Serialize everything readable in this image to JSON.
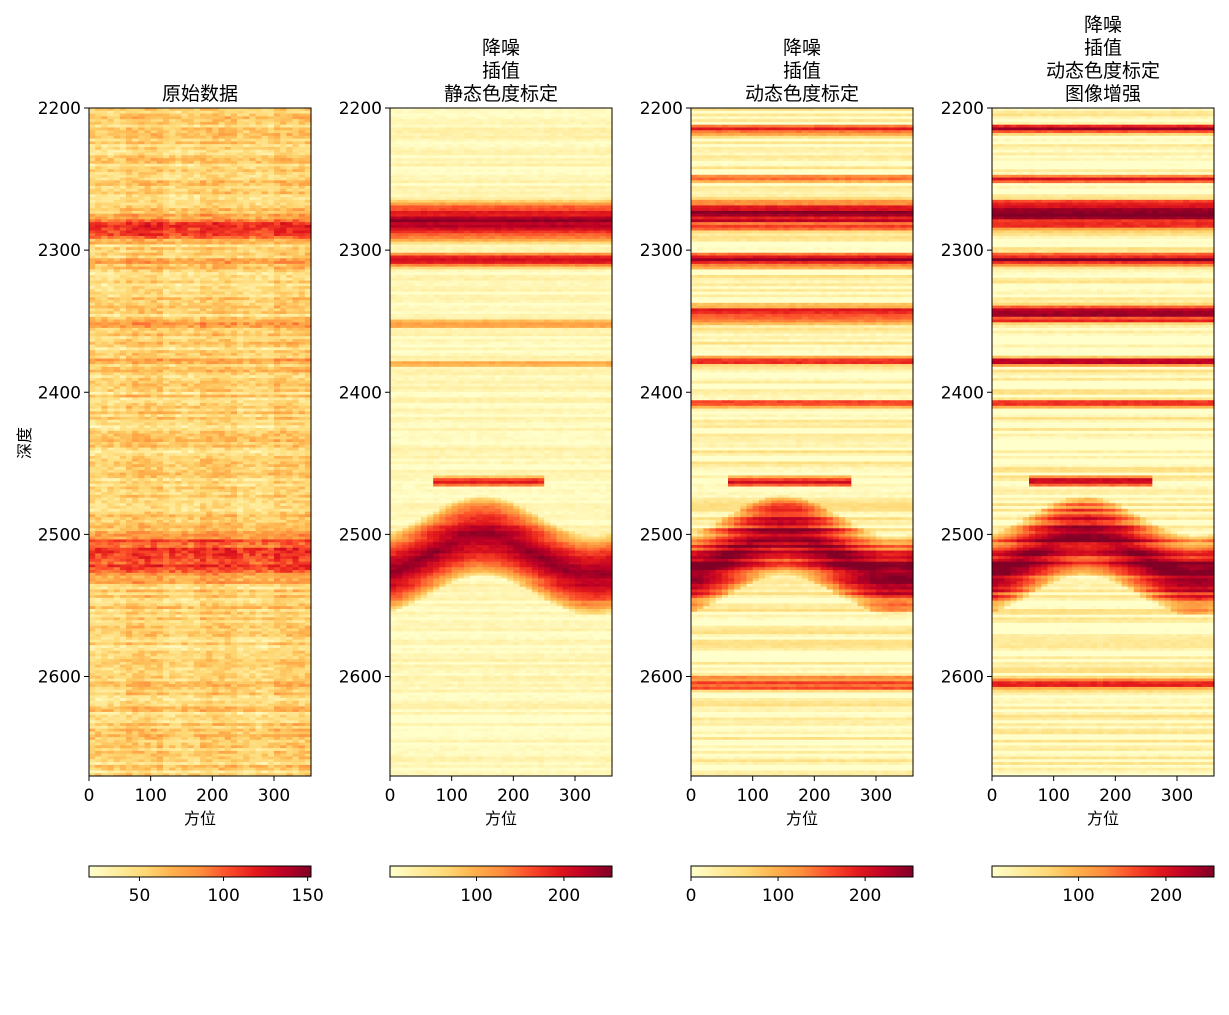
{
  "figure": {
    "ylabel": "深度",
    "xlabel": "方位",
    "colormap": [
      "#ffffcc",
      "#ffeda0",
      "#fed976",
      "#feb24c",
      "#fd8d3c",
      "#fc4e2a",
      "#e31a1c",
      "#bd0026",
      "#800026"
    ]
  },
  "chart_data": [
    {
      "type": "heatmap",
      "title": "原始数据",
      "title_lines": [
        "原始数据"
      ],
      "xlabel": "方位",
      "ylabel": "深度",
      "xlim": [
        0,
        360
      ],
      "ylim": [
        2670,
        2200
      ],
      "xticks": [
        0,
        100,
        200,
        300
      ],
      "yticks": [
        2200,
        2300,
        2400,
        2500,
        2600
      ],
      "colorbar": {
        "range": [
          20,
          152
        ],
        "ticks": [
          50,
          100,
          150
        ]
      },
      "bands": [
        {
          "center": 2285,
          "width": 28,
          "level": 0.75
        },
        {
          "center": 2308,
          "width": 8,
          "level": 0.55
        },
        {
          "center": 2352,
          "width": 14,
          "level": 0.5
        },
        {
          "center": 2378,
          "width": 6,
          "level": 0.45
        },
        {
          "center": 2515,
          "width": 50,
          "level": 0.8
        }
      ],
      "raw": true
    },
    {
      "type": "heatmap",
      "title": "降噪\n插值\n静态色度标定",
      "title_lines": [
        "降噪",
        "插值",
        "静态色度标定"
      ],
      "xlabel": "方位",
      "ylabel": "",
      "xlim": [
        0,
        360
      ],
      "ylim": [
        2670,
        2200
      ],
      "xticks": [
        0,
        100,
        200,
        300
      ],
      "yticks": [
        2200,
        2300,
        2400,
        2500,
        2600
      ],
      "colorbar": {
        "range": [
          1,
          255
        ],
        "ticks": [
          100,
          200
        ]
      },
      "bands": [
        {
          "center": 2280,
          "width": 30,
          "level": 0.95
        },
        {
          "center": 2307,
          "width": 10,
          "level": 0.85
        },
        {
          "center": 2352,
          "width": 6,
          "level": 0.5
        },
        {
          "center": 2380,
          "width": 4,
          "level": 0.5
        },
        {
          "center": 2463,
          "width": 6,
          "level": 0.85,
          "azimuth": [
            70,
            250
          ]
        },
        {
          "center": 2515,
          "width": 55,
          "level": 0.95,
          "arch": true
        }
      ],
      "raw": false
    },
    {
      "type": "heatmap",
      "title": "降噪\n插值\n动态色度标定",
      "title_lines": [
        "降噪",
        "插值",
        "动态色度标定"
      ],
      "xlabel": "方位",
      "ylabel": "",
      "xlim": [
        0,
        360
      ],
      "ylim": [
        2670,
        2200
      ],
      "xticks": [
        0,
        100,
        200,
        300
      ],
      "yticks": [
        2200,
        2300,
        2400,
        2500,
        2600
      ],
      "colorbar": {
        "range": [
          0,
          255
        ],
        "ticks": [
          0,
          100,
          200
        ]
      },
      "bands": [
        {
          "center": 2215,
          "width": 6,
          "level": 0.85
        },
        {
          "center": 2250,
          "width": 5,
          "level": 0.6
        },
        {
          "center": 2275,
          "width": 24,
          "level": 0.95
        },
        {
          "center": 2307,
          "width": 10,
          "level": 0.9
        },
        {
          "center": 2345,
          "width": 14,
          "level": 0.8
        },
        {
          "center": 2378,
          "width": 5,
          "level": 0.8
        },
        {
          "center": 2408,
          "width": 5,
          "level": 0.7
        },
        {
          "center": 2463,
          "width": 6,
          "level": 0.9,
          "azimuth": [
            60,
            260
          ]
        },
        {
          "center": 2515,
          "width": 55,
          "level": 0.98,
          "arch": true
        },
        {
          "center": 2605,
          "width": 10,
          "level": 0.7
        }
      ],
      "raw": false
    },
    {
      "type": "heatmap",
      "title": "降噪\n插值\n动态色度标定\n图像增强",
      "title_lines": [
        "降噪",
        "插值",
        "动态色度标定",
        "图像增强"
      ],
      "xlabel": "方位",
      "ylabel": "",
      "xlim": [
        0,
        360
      ],
      "ylim": [
        2670,
        2200
      ],
      "xticks": [
        0,
        100,
        200,
        300
      ],
      "yticks": [
        2200,
        2300,
        2400,
        2500,
        2600
      ],
      "colorbar": {
        "range": [
          1,
          255
        ],
        "ticks": [
          100,
          200
        ]
      },
      "bands": [
        {
          "center": 2215,
          "width": 6,
          "level": 0.95
        },
        {
          "center": 2250,
          "width": 5,
          "level": 0.7
        },
        {
          "center": 2275,
          "width": 24,
          "level": 1.0
        },
        {
          "center": 2307,
          "width": 10,
          "level": 0.95
        },
        {
          "center": 2345,
          "width": 14,
          "level": 0.9
        },
        {
          "center": 2378,
          "width": 5,
          "level": 0.9
        },
        {
          "center": 2408,
          "width": 5,
          "level": 0.8
        },
        {
          "center": 2463,
          "width": 6,
          "level": 0.95,
          "azimuth": [
            60,
            260
          ]
        },
        {
          "center": 2515,
          "width": 55,
          "level": 1.0,
          "arch": true
        },
        {
          "center": 2605,
          "width": 10,
          "level": 0.8
        }
      ],
      "raw": false
    }
  ]
}
